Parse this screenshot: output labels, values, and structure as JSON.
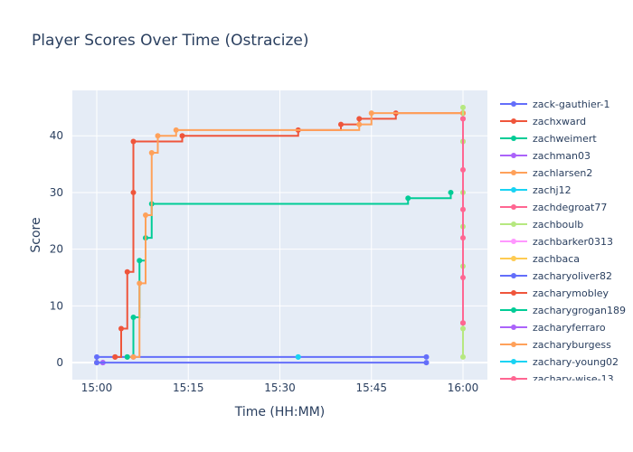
{
  "chart_data": {
    "type": "line",
    "line_shape": "step",
    "title": "Player Scores Over Time (Ostracize)",
    "xlabel": "Time (HH:MM)",
    "ylabel": "Score",
    "x_range": [
      "14:56",
      "16:04"
    ],
    "xlim": [
      "14:56",
      "16:04"
    ],
    "ylim": [
      -3,
      48
    ],
    "x_ticks": [
      "15:00",
      "15:15",
      "15:30",
      "15:45",
      "16:00"
    ],
    "y_ticks": [
      0,
      10,
      20,
      30,
      40
    ],
    "grid": true,
    "legend_position": "right",
    "background_color": "#E5ECF6",
    "series": [
      {
        "name": "zack-gauthier-1",
        "color": "#636efa",
        "points": [
          [
            "15:00",
            0
          ],
          [
            "15:00",
            1
          ],
          [
            "15:54",
            1
          ]
        ]
      },
      {
        "name": "zachxward",
        "color": "#EF553B",
        "points": [
          [
            "15:03",
            1
          ],
          [
            "15:04",
            6
          ],
          [
            "15:05",
            16
          ],
          [
            "15:06",
            30
          ],
          [
            "15:06",
            39
          ],
          [
            "15:14",
            40
          ],
          [
            "15:33",
            41
          ],
          [
            "15:40",
            42
          ],
          [
            "15:43",
            43
          ],
          [
            "15:49",
            44
          ],
          [
            "16:00",
            44
          ]
        ]
      },
      {
        "name": "zachweimert",
        "color": "#00cc96",
        "points": [
          [
            "15:05",
            1
          ],
          [
            "15:06",
            8
          ],
          [
            "15:07",
            18
          ],
          [
            "15:08",
            22
          ],
          [
            "15:09",
            28
          ],
          [
            "15:51",
            29
          ],
          [
            "15:58",
            30
          ]
        ]
      },
      {
        "name": "zachman03",
        "color": "#ab63fa",
        "points": [
          [
            "15:01",
            0
          ],
          [
            "15:01",
            0
          ]
        ]
      },
      {
        "name": "zachlarsen2",
        "color": "#FFA15A",
        "points": [
          [
            "15:05",
            1
          ],
          [
            "15:07",
            14
          ],
          [
            "15:08",
            26
          ],
          [
            "15:09",
            37
          ],
          [
            "15:10",
            40
          ],
          [
            "15:13",
            41
          ],
          [
            "15:43",
            42
          ],
          [
            "15:45",
            44
          ],
          [
            "16:00",
            44
          ]
        ]
      },
      {
        "name": "zachj12",
        "color": "#19d3f3",
        "points": [
          [
            "15:33",
            1
          ]
        ]
      },
      {
        "name": "zachdegroat77",
        "color": "#FF6692",
        "points": [
          [
            "16:00",
            7
          ],
          [
            "16:00",
            15
          ],
          [
            "16:00",
            22
          ],
          [
            "16:00",
            27
          ],
          [
            "16:00",
            34
          ],
          [
            "16:00",
            39
          ],
          [
            "16:00",
            43
          ]
        ]
      },
      {
        "name": "zachboulb",
        "color": "#B6E880",
        "points": [
          [
            "16:00",
            1
          ],
          [
            "16:00",
            6
          ],
          [
            "16:00",
            17
          ],
          [
            "16:00",
            24
          ],
          [
            "16:00",
            30
          ],
          [
            "16:00",
            39
          ],
          [
            "16:00",
            45
          ]
        ]
      },
      {
        "name": "zachbarker0313",
        "color": "#FF97FF",
        "points": [
          [
            "15:00",
            0
          ]
        ]
      },
      {
        "name": "zachbaca",
        "color": "#FECB52",
        "points": [
          [
            "15:00",
            0
          ]
        ]
      },
      {
        "name": "zacharyoliver82",
        "color": "#636efa",
        "points": [
          [
            "15:00",
            0
          ],
          [
            "15:54",
            0
          ]
        ]
      },
      {
        "name": "zacharymobley",
        "color": "#EF553B",
        "points": [
          [
            "15:03",
            1
          ]
        ]
      },
      {
        "name": "zacharygrogan189",
        "color": "#00cc96",
        "points": [
          [
            "15:05",
            1
          ]
        ]
      },
      {
        "name": "zacharyferraro",
        "color": "#ab63fa",
        "points": [
          [
            "15:06",
            1
          ]
        ]
      },
      {
        "name": "zacharyburgess",
        "color": "#FFA15A",
        "points": [
          [
            "15:06",
            1
          ]
        ]
      },
      {
        "name": "zachary-young02",
        "color": "#19d3f3",
        "points": [
          [
            "15:33",
            1
          ]
        ]
      },
      {
        "name": "zachary-wise-13",
        "color": "#FF6692",
        "points": [
          [
            "16:00",
            7
          ],
          [
            "16:00",
            43
          ]
        ]
      }
    ]
  }
}
